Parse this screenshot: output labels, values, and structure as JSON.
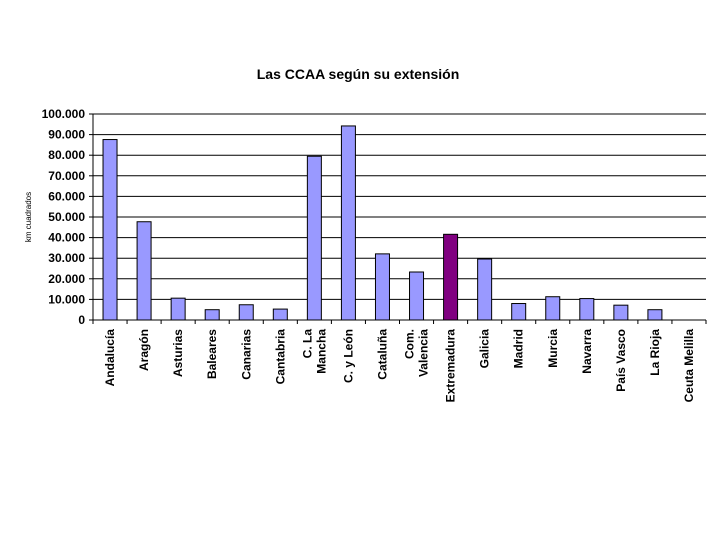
{
  "chart_data": {
    "type": "bar",
    "title": "Las CCAA según su extensión",
    "xlabel": "",
    "ylabel": "km cuadrados",
    "ylim": [
      0,
      100000
    ],
    "yticks": [
      "0",
      "10.000",
      "20.000",
      "30.000",
      "40.000",
      "50.000",
      "60.000",
      "70.000",
      "80.000",
      "90.000",
      "100.000"
    ],
    "grid": true,
    "legend": "none",
    "categories": [
      [
        "Andalucía"
      ],
      [
        "Aragón"
      ],
      [
        "Asturias"
      ],
      [
        "Baleares"
      ],
      [
        "Canarias"
      ],
      [
        "Cantabria"
      ],
      [
        "C. La",
        "Mancha"
      ],
      [
        "C. y León"
      ],
      [
        "Cataluña"
      ],
      [
        "Com.",
        "Valencia"
      ],
      [
        "Extremadura"
      ],
      [
        "Galicia"
      ],
      [
        "Madrid"
      ],
      [
        "Murcia"
      ],
      [
        "Navarra"
      ],
      [
        "País Vasco"
      ],
      [
        "La Rioja"
      ],
      [
        "Ceuta Melilla"
      ]
    ],
    "values": [
      87600,
      47700,
      10600,
      5000,
      7400,
      5300,
      79500,
      94200,
      32100,
      23300,
      41600,
      29600,
      8000,
      11300,
      10400,
      7200,
      5000,
      0
    ],
    "colors": {
      "bar": "#9999ff",
      "highlight": "#800080",
      "highlight_index": 10,
      "grid": "#000000"
    }
  }
}
